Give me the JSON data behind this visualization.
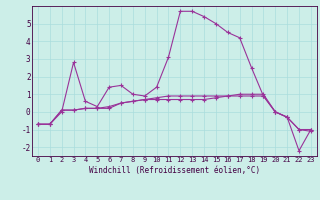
{
  "xlabel": "Windchill (Refroidissement éolien,°C)",
  "bg_color": "#cceee8",
  "line_color": "#993399",
  "x_hours": [
    0,
    1,
    2,
    3,
    4,
    5,
    6,
    7,
    8,
    9,
    10,
    11,
    12,
    13,
    14,
    15,
    16,
    17,
    18,
    19,
    20,
    21,
    22,
    23
  ],
  "series": [
    [
      -0.7,
      -0.7,
      0.0,
      2.8,
      0.6,
      0.3,
      1.4,
      1.5,
      1.0,
      0.9,
      1.4,
      3.1,
      5.7,
      5.7,
      5.4,
      5.0,
      4.5,
      4.2,
      2.5,
      0.9,
      0.0,
      -0.3,
      -1.0,
      -1.1
    ],
    [
      -0.7,
      -0.7,
      0.1,
      0.1,
      0.2,
      0.2,
      0.2,
      0.5,
      0.6,
      0.7,
      0.7,
      0.7,
      0.7,
      0.7,
      0.7,
      0.8,
      0.9,
      1.0,
      1.0,
      1.0,
      0.0,
      -0.3,
      -2.2,
      -1.0
    ],
    [
      -0.7,
      -0.7,
      0.1,
      0.1,
      0.2,
      0.2,
      0.3,
      0.5,
      0.6,
      0.7,
      0.8,
      0.9,
      0.9,
      0.9,
      0.9,
      0.9,
      0.9,
      0.9,
      0.9,
      0.9,
      0.0,
      -0.3,
      -1.0,
      -1.0
    ]
  ],
  "xlim": [
    -0.5,
    23.5
  ],
  "ylim": [
    -2.5,
    6.0
  ],
  "yticks": [
    -2,
    -1,
    0,
    1,
    2,
    3,
    4,
    5
  ],
  "grid_color": "#aadddd",
  "spine_color": "#440044",
  "tick_fontsize": 5.0,
  "xlabel_fontsize": 5.5,
  "linewidth": 0.8,
  "markersize": 3.0
}
